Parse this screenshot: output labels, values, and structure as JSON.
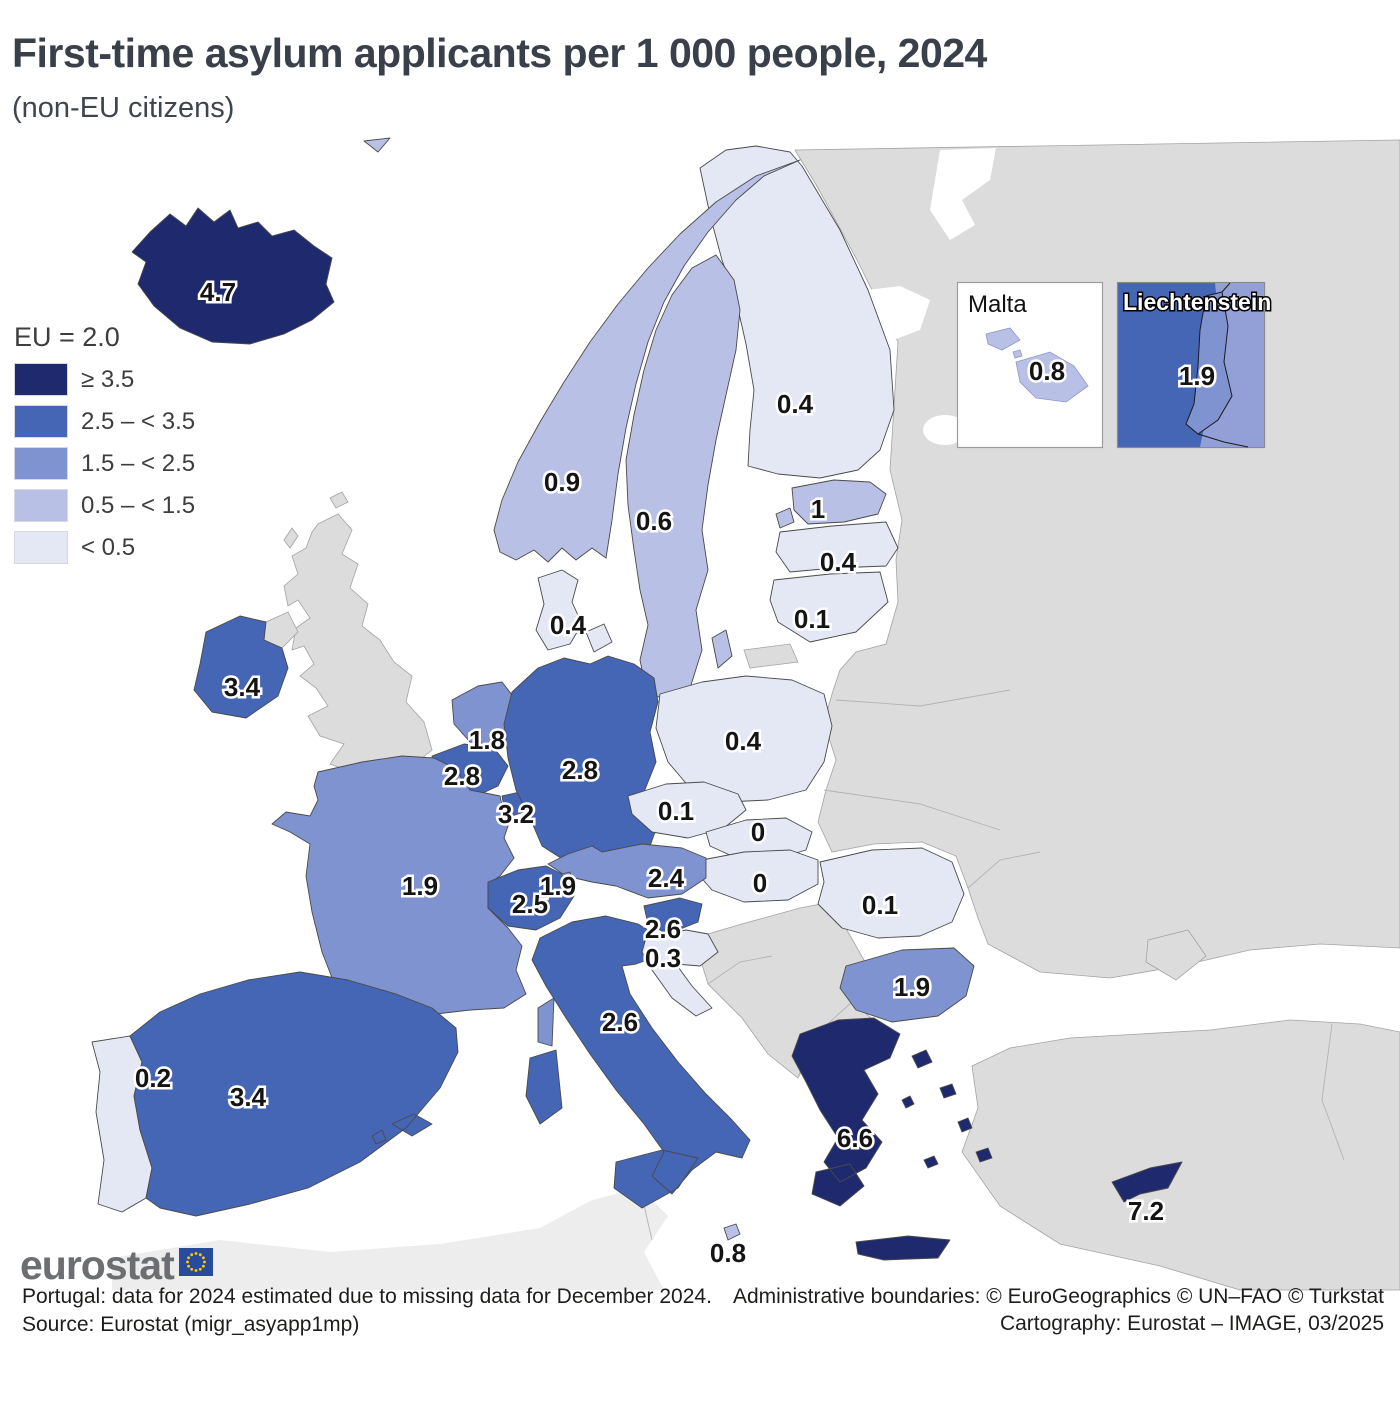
{
  "title": "First-time asylum applicants per 1 000 people, 2024",
  "subtitle": "(non-EU citizens)",
  "legend": {
    "eu_average_label": "EU = 2.0",
    "classes": [
      {
        "id": "c5",
        "label": "≥ 3.5",
        "color": "#1f2a6e"
      },
      {
        "id": "c4",
        "label": "2.5 – < 3.5",
        "color": "#4565b5"
      },
      {
        "id": "c3",
        "label": "1.5 – < 2.5",
        "color": "#8093d1"
      },
      {
        "id": "c2",
        "label": "0.5 – < 1.5",
        "color": "#b8c0e6"
      },
      {
        "id": "c1",
        "label": "< 0.5",
        "color": "#e4e8f5"
      }
    ]
  },
  "map": {
    "countries": [
      {
        "id": "IS",
        "name": "Iceland",
        "value": "4.7",
        "class": "c5"
      },
      {
        "id": "NO",
        "name": "Norway",
        "value": "0.9",
        "class": "c2"
      },
      {
        "id": "SE",
        "name": "Sweden",
        "value": "0.6",
        "class": "c2"
      },
      {
        "id": "FI",
        "name": "Finland",
        "value": "0.4",
        "class": "c1"
      },
      {
        "id": "EE",
        "name": "Estonia",
        "value": "1",
        "class": "c2"
      },
      {
        "id": "LV",
        "name": "Latvia",
        "value": "0.4",
        "class": "c1"
      },
      {
        "id": "LT",
        "name": "Lithuania",
        "value": "0.1",
        "class": "c1"
      },
      {
        "id": "DK",
        "name": "Denmark",
        "value": "0.4",
        "class": "c1"
      },
      {
        "id": "IE",
        "name": "Ireland",
        "value": "3.4",
        "class": "c4"
      },
      {
        "id": "NL",
        "name": "Netherlands",
        "value": "1.8",
        "class": "c3"
      },
      {
        "id": "BE",
        "name": "Belgium",
        "value": "2.8",
        "class": "c4"
      },
      {
        "id": "LU",
        "name": "Luxembourg",
        "value": "3.2",
        "class": "c4"
      },
      {
        "id": "DE",
        "name": "Germany",
        "value": "2.8",
        "class": "c4"
      },
      {
        "id": "PL",
        "name": "Poland",
        "value": "0.4",
        "class": "c1"
      },
      {
        "id": "CZ",
        "name": "Czechia",
        "value": "0.1",
        "class": "c1"
      },
      {
        "id": "SK",
        "name": "Slovakia",
        "value": "0",
        "class": "c1"
      },
      {
        "id": "HU",
        "name": "Hungary",
        "value": "0",
        "class": "c1"
      },
      {
        "id": "AT",
        "name": "Austria",
        "value": "2.4",
        "class": "c3"
      },
      {
        "id": "CH",
        "name": "Switzerland",
        "value": "2.5",
        "class": "c4"
      },
      {
        "id": "LI",
        "name": "Liechtenstein",
        "value": "1.9",
        "class": "c3"
      },
      {
        "id": "FR",
        "name": "France",
        "value": "1.9",
        "class": "c3"
      },
      {
        "id": "PT",
        "name": "Portugal",
        "value": "0.2",
        "class": "c1"
      },
      {
        "id": "ES",
        "name": "Spain",
        "value": "3.4",
        "class": "c4"
      },
      {
        "id": "IT",
        "name": "Italy",
        "value": "2.6",
        "class": "c4"
      },
      {
        "id": "SI",
        "name": "Slovenia",
        "value": "2.6",
        "class": "c4"
      },
      {
        "id": "HR",
        "name": "Croatia",
        "value": "0.3",
        "class": "c1"
      },
      {
        "id": "RO",
        "name": "Romania",
        "value": "0.1",
        "class": "c1"
      },
      {
        "id": "BG",
        "name": "Bulgaria",
        "value": "1.9",
        "class": "c3"
      },
      {
        "id": "EL",
        "name": "Greece",
        "value": "6.6",
        "class": "c5"
      },
      {
        "id": "CY",
        "name": "Cyprus",
        "value": "7.2",
        "class": "c5"
      },
      {
        "id": "MT",
        "name": "Malta",
        "value": "0.8",
        "class": "c2"
      }
    ],
    "insets": [
      {
        "id": "MT",
        "title": "Malta",
        "value": "0.8",
        "class": "c2"
      },
      {
        "id": "LI",
        "title": "Liechtenstein",
        "value": "1.9",
        "class": "c3"
      }
    ]
  },
  "footer": {
    "logo_text": "eurostat",
    "note": "Portugal: data for 2024 estimated due to missing data for December 2024.",
    "source": "Source: Eurostat (migr_asyapp1mp)",
    "boundaries": "Administrative boundaries: © EuroGeographics © UN–FAO © Turkstat",
    "cartography": "Cartography: Eurostat – IMAGE, 03/2025"
  },
  "chart_data": {
    "type": "choropleth_map",
    "title": "First-time asylum applicants per 1 000 people, 2024",
    "subtitle": "(non-EU citizens)",
    "unit": "per 1 000 people",
    "eu_average": 2.0,
    "class_breaks": [
      "≥ 3.5",
      "2.5 – < 3.5",
      "1.5 – < 2.5",
      "0.5 – < 1.5",
      "< 0.5"
    ],
    "series": [
      {
        "name": "Iceland",
        "value": 4.7
      },
      {
        "name": "Norway",
        "value": 0.9
      },
      {
        "name": "Sweden",
        "value": 0.6
      },
      {
        "name": "Finland",
        "value": 0.4
      },
      {
        "name": "Estonia",
        "value": 1
      },
      {
        "name": "Latvia",
        "value": 0.4
      },
      {
        "name": "Lithuania",
        "value": 0.1
      },
      {
        "name": "Denmark",
        "value": 0.4
      },
      {
        "name": "Ireland",
        "value": 3.4
      },
      {
        "name": "Netherlands",
        "value": 1.8
      },
      {
        "name": "Belgium",
        "value": 2.8
      },
      {
        "name": "Luxembourg",
        "value": 3.2
      },
      {
        "name": "Germany",
        "value": 2.8
      },
      {
        "name": "Poland",
        "value": 0.4
      },
      {
        "name": "Czechia",
        "value": 0.1
      },
      {
        "name": "Slovakia",
        "value": 0
      },
      {
        "name": "Hungary",
        "value": 0
      },
      {
        "name": "Austria",
        "value": 2.4
      },
      {
        "name": "Switzerland",
        "value": 2.5
      },
      {
        "name": "Liechtenstein",
        "value": 1.9
      },
      {
        "name": "France",
        "value": 1.9
      },
      {
        "name": "Portugal",
        "value": 0.2
      },
      {
        "name": "Spain",
        "value": 3.4
      },
      {
        "name": "Italy",
        "value": 2.6
      },
      {
        "name": "Slovenia",
        "value": 2.6
      },
      {
        "name": "Croatia",
        "value": 0.3
      },
      {
        "name": "Romania",
        "value": 0.1
      },
      {
        "name": "Bulgaria",
        "value": 1.9
      },
      {
        "name": "Greece",
        "value": 6.6
      },
      {
        "name": "Cyprus",
        "value": 7.2
      },
      {
        "name": "Malta",
        "value": 0.8
      }
    ]
  }
}
